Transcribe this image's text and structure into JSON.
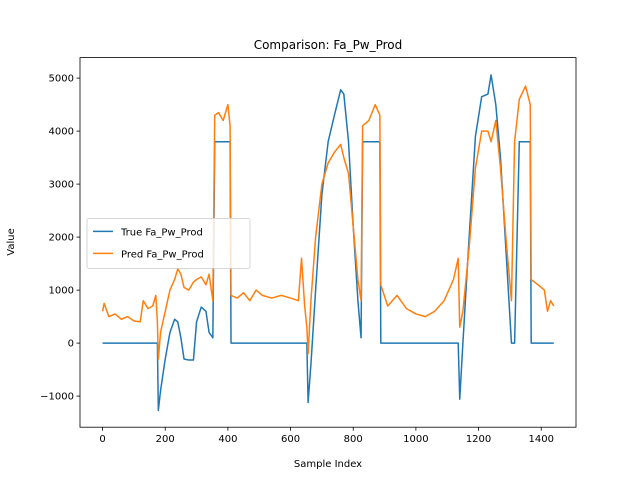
{
  "chart_data": {
    "type": "line",
    "title": "Comparison: Fa_Pw_Prod",
    "xlabel": "Sample Index",
    "ylabel": "Value",
    "x": [
      0,
      5,
      20,
      40,
      60,
      80,
      100,
      120,
      130,
      145,
      160,
      170,
      175,
      178,
      185,
      200,
      215,
      230,
      240,
      250,
      260,
      275,
      290,
      300,
      315,
      330,
      340,
      352,
      358,
      370,
      385,
      400,
      407,
      410,
      430,
      450,
      470,
      490,
      510,
      540,
      570,
      600,
      625,
      635,
      645,
      652,
      656,
      665,
      680,
      700,
      720,
      740,
      760,
      770,
      785,
      800,
      815,
      825,
      830,
      850,
      870,
      885,
      888,
      910,
      940,
      970,
      1000,
      1030,
      1060,
      1090,
      1120,
      1135,
      1140,
      1150,
      1170,
      1190,
      1210,
      1230,
      1240,
      1255,
      1270,
      1290,
      1305,
      1315,
      1330,
      1350,
      1365,
      1368,
      1390,
      1410,
      1420,
      1430,
      1440
    ],
    "series": [
      {
        "name": "True Fa_Pw_Prod",
        "color": "#1f77b4",
        "values": [
          0,
          0,
          0,
          0,
          0,
          0,
          0,
          0,
          0,
          0,
          0,
          0,
          0,
          -1270,
          -900,
          -300,
          200,
          450,
          400,
          100,
          -300,
          -320,
          -320,
          400,
          680,
          600,
          200,
          100,
          3800,
          3800,
          3800,
          3800,
          3800,
          0,
          0,
          0,
          0,
          0,
          0,
          0,
          0,
          0,
          0,
          0,
          0,
          0,
          -1120,
          -400,
          1000,
          2800,
          3800,
          4300,
          4780,
          4700,
          3800,
          2200,
          800,
          100,
          3800,
          3800,
          3800,
          3800,
          0,
          0,
          0,
          0,
          0,
          0,
          0,
          0,
          0,
          0,
          -1060,
          0,
          2000,
          3900,
          4650,
          4700,
          5060,
          4500,
          3500,
          1500,
          0,
          0,
          3800,
          3800,
          3800,
          0,
          0,
          0,
          0,
          0,
          0
        ]
      },
      {
        "name": "Pred Fa_Pw_Prod",
        "color": "#ff7f0e",
        "values": [
          600,
          750,
          500,
          550,
          450,
          500,
          420,
          400,
          800,
          650,
          700,
          900,
          400,
          -300,
          200,
          600,
          1000,
          1200,
          1400,
          1300,
          1050,
          1000,
          1150,
          1200,
          1250,
          1100,
          1300,
          800,
          4300,
          4350,
          4200,
          4500,
          4100,
          900,
          850,
          950,
          800,
          1000,
          900,
          850,
          900,
          850,
          800,
          1600,
          700,
          300,
          -200,
          800,
          2000,
          3000,
          3400,
          3600,
          3750,
          3500,
          3200,
          2200,
          1200,
          800,
          4100,
          4200,
          4500,
          4300,
          1100,
          700,
          900,
          650,
          550,
          500,
          600,
          800,
          1200,
          1600,
          300,
          600,
          1800,
          3300,
          4000,
          4000,
          3800,
          4200,
          3300,
          1800,
          800,
          3800,
          4600,
          4850,
          4500,
          1200,
          1100,
          1000,
          600,
          800,
          700
        ]
      }
    ],
    "xlim": [
      -72,
      1511
    ],
    "ylim": [
      -1587,
      5387
    ],
    "xticks": [
      0,
      200,
      400,
      600,
      800,
      1000,
      1200,
      1400
    ],
    "yticks": [
      {
        "value": -1000,
        "label": "−1000"
      },
      0,
      1000,
      2000,
      3000,
      4000,
      5000
    ],
    "legend": "center left"
  }
}
